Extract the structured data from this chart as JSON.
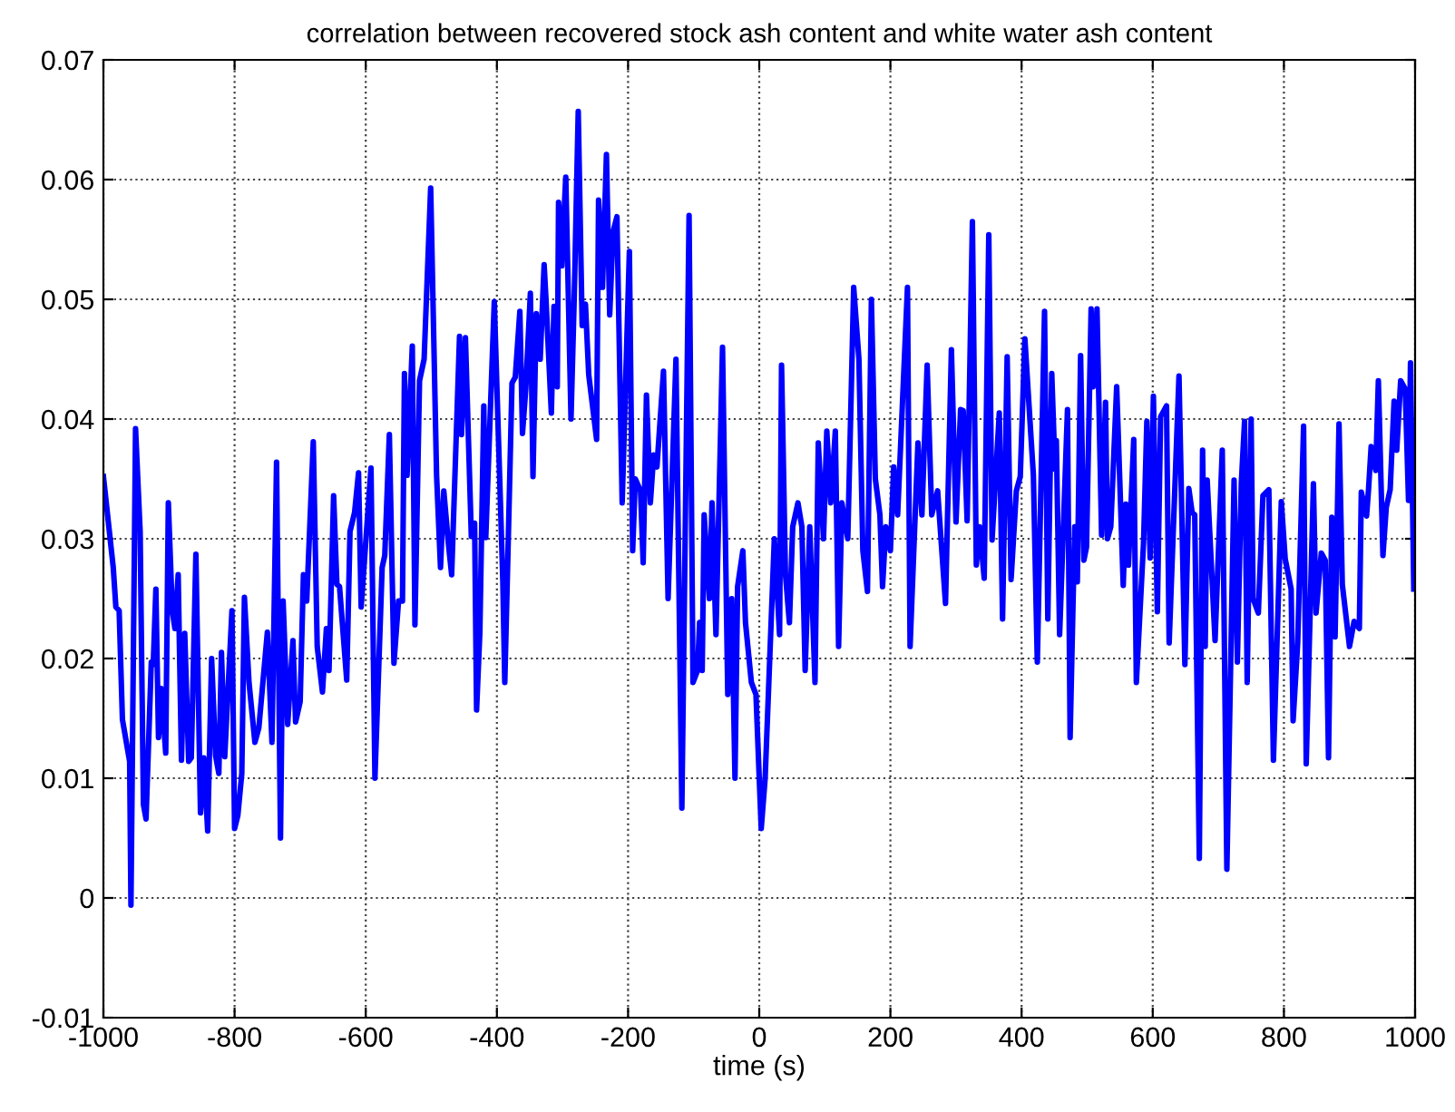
{
  "chart_data": {
    "type": "line",
    "title": "correlation between recovered stock ash content and white water ash content",
    "xlabel": "time (s)",
    "xlim": [
      -1000,
      1000
    ],
    "xticks": [
      -1000,
      -800,
      -600,
      -400,
      -200,
      0,
      200,
      400,
      600,
      800,
      1000
    ],
    "ylim": [
      -0.01,
      0.07
    ],
    "yticks": [
      -0.01,
      0,
      0.01,
      0.02,
      0.03,
      0.04,
      0.05,
      0.06,
      0.07
    ],
    "grid": true,
    "marker": "none",
    "line_style": "solid",
    "series": [
      {
        "color": "#0000ff",
        "x": [
          -1000,
          -985,
          -981,
          -976,
          -971,
          -960,
          -958,
          -951,
          -944,
          -939,
          -935,
          -927,
          -924,
          -920,
          -916,
          -912,
          -905,
          -901,
          -895,
          -891,
          -886,
          -881,
          -876,
          -870,
          -866,
          -859,
          -852,
          -847,
          -841,
          -835,
          -829,
          -824,
          -820,
          -815,
          -804,
          -800,
          -795,
          -789,
          -785,
          -778,
          -769,
          -763,
          -750,
          -743,
          -736,
          -730,
          -726,
          -719,
          -711,
          -707,
          -700,
          -695,
          -690,
          -680,
          -674,
          -666,
          -660,
          -656,
          -649,
          -644,
          -640,
          -629,
          -624,
          -617,
          -611,
          -607,
          -592,
          -586,
          -575,
          -571,
          -564,
          -557,
          -550,
          -544,
          -541,
          -537,
          -529,
          -525,
          -518,
          -511,
          -501,
          -492,
          -486,
          -481,
          -474,
          -469,
          -457,
          -454,
          -448,
          -439,
          -434,
          -431,
          -426,
          -420,
          -417,
          -404,
          -391,
          -388,
          -383,
          -377,
          -372,
          -365,
          -361,
          -356,
          -349,
          -345,
          -340,
          -334,
          -328,
          -325,
          -317,
          -313,
          -308,
          -306,
          -301,
          -300,
          -295,
          -287,
          -282,
          -276,
          -270,
          -265,
          -260,
          -248,
          -245,
          -239,
          -233,
          -228,
          -223,
          -217,
          -209,
          -198,
          -193,
          -189,
          -181,
          -177,
          -172,
          -166,
          -161,
          -156,
          -146,
          -139,
          -127,
          -118,
          -107,
          -101,
          -94,
          -91,
          -87,
          -84,
          -76,
          -72,
          -66,
          -56,
          -48,
          -42,
          -37,
          -33,
          -25,
          -21,
          -12,
          -5,
          3,
          9,
          23,
          31,
          34,
          40,
          46,
          51,
          59,
          65,
          70,
          77,
          85,
          90,
          98,
          103,
          109,
          116,
          121,
          126,
          135,
          144,
          152,
          158,
          165,
          171,
          177,
          184,
          188,
          193,
          200,
          205,
          211,
          226,
          230,
          242,
          248,
          256,
          263,
          272,
          284,
          293,
          300,
          307,
          311,
          317,
          325,
          331,
          336,
          343,
          350,
          355,
          366,
          371,
          378,
          384,
          392,
          398,
          405,
          418,
          424,
          435,
          440,
          446,
          451,
          453,
          458,
          470,
          474,
          481,
          485,
          490,
          495,
          499,
          506,
          509,
          515,
          522,
          528,
          531,
          536,
          545,
          555,
          559,
          563,
          571,
          575,
          586,
          591,
          596,
          601,
          607,
          612,
          621,
          625,
          640,
          649,
          655,
          660,
          664,
          671,
          676,
          680,
          683,
          695,
          706,
          713,
          724,
          729,
          735,
          740,
          744,
          750,
          753,
          761,
          768,
          777,
          784,
          796,
          802,
          811,
          814,
          821,
          830,
          834,
          845,
          849,
          857,
          863,
          868,
          873,
          878,
          884,
          889,
          900,
          907,
          915,
          918,
          926,
          929,
          933,
          940,
          944,
          951,
          956,
          962,
          968,
          972,
          978,
          985,
          990,
          993,
          998
        ],
        "values": [
          0.0352,
          0.0276,
          0.0243,
          0.024,
          0.0149,
          0.0114,
          -0.0006,
          0.0392,
          0.0306,
          0.0078,
          0.0066,
          0.0197,
          0.0195,
          0.0258,
          0.0134,
          0.0175,
          0.0121,
          0.033,
          0.024,
          0.0225,
          0.027,
          0.0115,
          0.0221,
          0.0114,
          0.0117,
          0.0287,
          0.0071,
          0.0117,
          0.0056,
          0.02,
          0.0119,
          0.0104,
          0.0205,
          0.0118,
          0.024,
          0.0058,
          0.0069,
          0.0104,
          0.0251,
          0.018,
          0.013,
          0.0142,
          0.0222,
          0.013,
          0.0364,
          0.005,
          0.0248,
          0.0145,
          0.0215,
          0.0147,
          0.0164,
          0.027,
          0.0248,
          0.0381,
          0.021,
          0.0172,
          0.0225,
          0.019,
          0.0336,
          0.0262,
          0.026,
          0.0182,
          0.0306,
          0.0322,
          0.0355,
          0.0243,
          0.0359,
          0.01,
          0.0276,
          0.0286,
          0.0387,
          0.0196,
          0.0248,
          0.0248,
          0.0438,
          0.0353,
          0.0461,
          0.0228,
          0.0432,
          0.045,
          0.0593,
          0.0353,
          0.0276,
          0.034,
          0.0296,
          0.027,
          0.0469,
          0.0387,
          0.0468,
          0.0302,
          0.0313,
          0.0157,
          0.0222,
          0.0411,
          0.0301,
          0.0498,
          0.0265,
          0.018,
          0.0292,
          0.043,
          0.0435,
          0.049,
          0.0388,
          0.0425,
          0.0505,
          0.0352,
          0.0488,
          0.045,
          0.0529,
          0.0498,
          0.0405,
          0.0494,
          0.0427,
          0.0581,
          0.0528,
          0.0546,
          0.0602,
          0.04,
          0.0504,
          0.0657,
          0.0478,
          0.0496,
          0.0437,
          0.0383,
          0.0583,
          0.051,
          0.0621,
          0.0487,
          0.0556,
          0.0569,
          0.033,
          0.054,
          0.029,
          0.035,
          0.034,
          0.028,
          0.042,
          0.033,
          0.037,
          0.036,
          0.044,
          0.025,
          0.045,
          0.0075,
          0.057,
          0.018,
          0.019,
          0.023,
          0.019,
          0.032,
          0.025,
          0.033,
          0.022,
          0.046,
          0.017,
          0.025,
          0.01,
          0.026,
          0.029,
          0.023,
          0.018,
          0.017,
          0.0058,
          0.01,
          0.03,
          0.022,
          0.0445,
          0.027,
          0.023,
          0.031,
          0.033,
          0.031,
          0.019,
          0.031,
          0.018,
          0.038,
          0.03,
          0.039,
          0.033,
          0.039,
          0.021,
          0.033,
          0.03,
          0.051,
          0.045,
          0.029,
          0.0256,
          0.05,
          0.035,
          0.032,
          0.026,
          0.031,
          0.029,
          0.036,
          0.032,
          0.051,
          0.021,
          0.038,
          0.032,
          0.0445,
          0.032,
          0.034,
          0.0246,
          0.0458,
          0.0314,
          0.0408,
          0.0407,
          0.0315,
          0.0565,
          0.0278,
          0.031,
          0.0267,
          0.0554,
          0.0299,
          0.0405,
          0.0233,
          0.0452,
          0.0266,
          0.034,
          0.0352,
          0.0467,
          0.0353,
          0.0197,
          0.049,
          0.0233,
          0.0438,
          0.0358,
          0.0382,
          0.022,
          0.0408,
          0.0134,
          0.031,
          0.0264,
          0.0453,
          0.0282,
          0.0293,
          0.0492,
          0.0427,
          0.0492,
          0.0303,
          0.0414,
          0.03,
          0.031,
          0.0427,
          0.0261,
          0.0329,
          0.0278,
          0.0383,
          0.018,
          0.0297,
          0.0398,
          0.0284,
          0.0419,
          0.0239,
          0.0402,
          0.0411,
          0.0213,
          0.0436,
          0.0195,
          0.0342,
          0.0322,
          0.032,
          0.0033,
          0.0374,
          0.021,
          0.0349,
          0.0215,
          0.0374,
          0.0024,
          0.0349,
          0.0197,
          0.0346,
          0.0398,
          0.018,
          0.04,
          0.025,
          0.0238,
          0.0336,
          0.0341,
          0.0115,
          0.0331,
          0.0283,
          0.0258,
          0.0148,
          0.0213,
          0.0394,
          0.0112,
          0.0346,
          0.0238,
          0.0288,
          0.0282,
          0.0117,
          0.0318,
          0.0218,
          0.0396,
          0.0262,
          0.021,
          0.0231,
          0.0225,
          0.0339,
          0.0319,
          0.0341,
          0.0377,
          0.0357,
          0.0432,
          0.0286,
          0.0326,
          0.0341,
          0.0415,
          0.0374,
          0.0432,
          0.0425,
          0.0332,
          0.0447,
          0.0258
        ]
      }
    ]
  }
}
